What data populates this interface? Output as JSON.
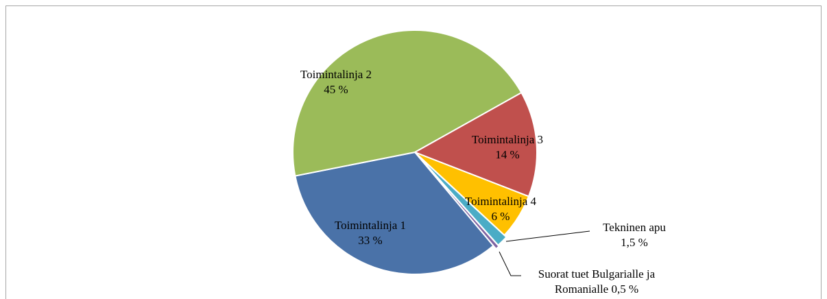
{
  "chart_data": {
    "type": "pie",
    "categories": [
      "Toimintalinja 1",
      "Toimintalinja 2",
      "Toimintalinja 3",
      "Toimintalinja 4",
      "Tekninen apu",
      "Suorat tuet Bulgarialle ja Romanialle"
    ],
    "values": [
      33,
      45,
      14,
      6,
      1.5,
      0.5
    ],
    "value_labels": [
      "33 %",
      "45 %",
      "14 %",
      "6 %",
      "1,5 %",
      "0,5 %"
    ],
    "colors": [
      "#4a72a8",
      "#9bbb59",
      "#c0504d",
      "#ffc000",
      "#4bacc6",
      "#8064a2"
    ]
  }
}
